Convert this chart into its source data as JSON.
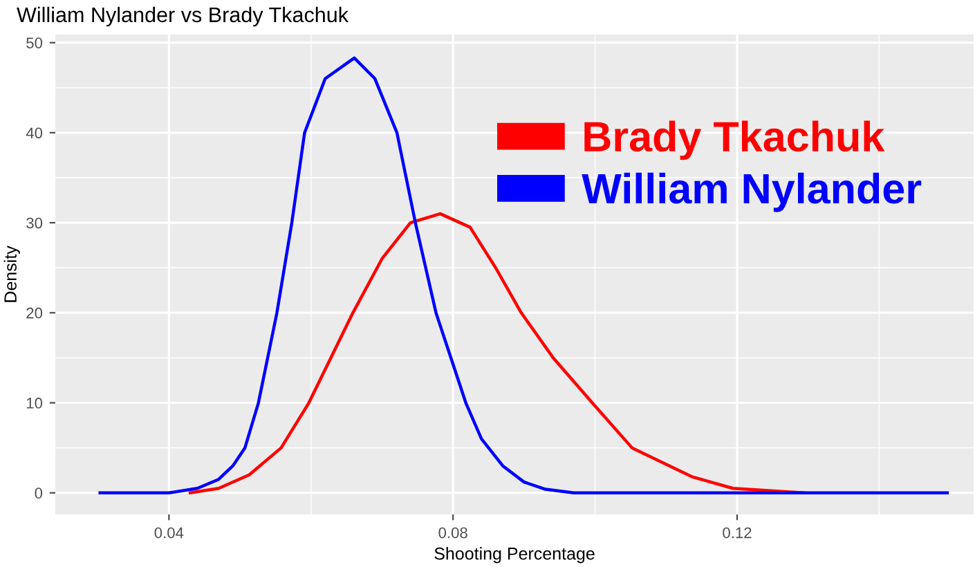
{
  "chart_data": {
    "type": "line",
    "title": "William Nylander vs Brady Tkachuk",
    "xlabel": "Shooting Percentage",
    "ylabel": "Density",
    "xlim": [
      0.024,
      0.1533
    ],
    "xticks": [
      0.04,
      0.08,
      0.12
    ],
    "ylim": [
      -2.4,
      50.9
    ],
    "yticks": [
      0,
      10,
      20,
      30,
      40,
      50
    ],
    "grid": true,
    "legend": "top right",
    "series": [
      {
        "name": "Brady Tkachuk",
        "color": "#ff0000",
        "x": [
          0.043,
          0.047,
          0.0513,
          0.0558,
          0.0597,
          0.0659,
          0.07,
          0.074,
          0.0782,
          0.0824,
          0.086,
          0.0896,
          0.0941,
          0.0996,
          0.1052,
          0.1136,
          0.1194,
          0.1295
        ],
        "values": [
          0,
          0.5,
          2,
          5,
          10,
          20,
          26,
          30,
          31,
          29.5,
          25,
          20,
          15,
          10,
          5,
          1.8,
          0.5,
          0
        ]
      },
      {
        "name": "William Nylander",
        "color": "#0000ff",
        "x": [
          0.0303,
          0.04,
          0.044,
          0.047,
          0.049,
          0.0507,
          0.0526,
          0.0552,
          0.0573,
          0.0591,
          0.062,
          0.0661,
          0.069,
          0.0721,
          0.0747,
          0.0776,
          0.0818,
          0.084,
          0.087,
          0.09,
          0.093,
          0.097,
          0.1,
          0.1496
        ],
        "values": [
          0,
          0,
          0.5,
          1.5,
          3,
          5,
          10,
          20,
          30,
          40,
          46,
          48.3,
          46,
          40,
          30,
          20,
          10,
          6,
          3,
          1.2,
          0.4,
          0,
          0,
          0
        ]
      }
    ]
  }
}
